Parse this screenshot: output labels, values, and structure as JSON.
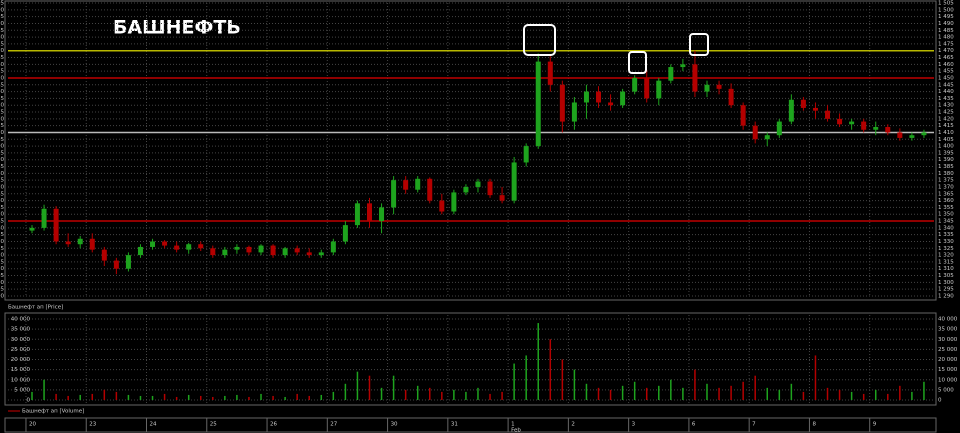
{
  "chart_data": {
    "type": "candlestick",
    "title": "БАШНЕФТЬ",
    "price_label": "Башнефт ап [Price]",
    "volume_label": "Башнефт ап [Volume]",
    "categories": [
      "20",
      null,
      null,
      null,
      null,
      "23",
      null,
      null,
      null,
      null,
      "24",
      null,
      null,
      null,
      null,
      "25",
      null,
      null,
      null,
      null,
      "26",
      null,
      null,
      null,
      null,
      "27",
      null,
      null,
      null,
      null,
      "30",
      null,
      null,
      null,
      null,
      "31",
      null,
      null,
      null,
      null,
      "1",
      null,
      null,
      null,
      null,
      "2",
      null,
      null,
      null,
      null,
      "3",
      null,
      null,
      null,
      null,
      "6",
      null,
      null,
      null,
      null,
      "7",
      null,
      null,
      null,
      null,
      "8",
      null,
      null,
      null,
      null,
      "9",
      null,
      null,
      null,
      null
    ],
    "month_categories": [
      null,
      null,
      null,
      null,
      null,
      null,
      null,
      null,
      null,
      null,
      null,
      null,
      null,
      null,
      null,
      null,
      null,
      null,
      null,
      null,
      null,
      null,
      null,
      null,
      null,
      null,
      null,
      null,
      null,
      null,
      null,
      null,
      null,
      null,
      null,
      null,
      null,
      null,
      null,
      null,
      "Feb",
      null,
      null,
      null,
      null,
      null,
      null,
      null,
      null,
      null,
      null,
      null,
      null,
      null,
      null,
      null,
      null,
      null,
      null,
      null,
      null,
      null,
      null,
      null,
      null,
      null,
      null,
      null,
      null,
      null,
      null,
      null,
      null,
      null,
      null
    ],
    "open": [
      1338,
      1340,
      1354,
      1330,
      1328,
      1332,
      1324,
      1316,
      1310,
      1320,
      1326,
      1330,
      1327,
      1324,
      1328,
      1325,
      1320,
      1324,
      1326,
      1322,
      1327,
      1320,
      1325,
      1322,
      1320,
      1322,
      1330,
      1342,
      1358,
      1345,
      1355,
      1375,
      1368,
      1376,
      1360,
      1352,
      1366,
      1370,
      1374,
      1364,
      1360,
      1388,
      1400,
      1462,
      1445,
      1418,
      1432,
      1440,
      1432,
      1430,
      1440,
      1450,
      1435,
      1448,
      1458,
      1460,
      1440,
      1445,
      1442,
      1430,
      1415,
      1405,
      1408,
      1418,
      1434,
      1428,
      1426,
      1420,
      1416,
      1418,
      1412,
      1414,
      1410,
      1406,
      1408
    ],
    "high": [
      1342,
      1357,
      1356,
      1336,
      1334,
      1336,
      1326,
      1318,
      1322,
      1328,
      1332,
      1331,
      1330,
      1329,
      1330,
      1327,
      1326,
      1328,
      1327,
      1328,
      1328,
      1326,
      1327,
      1325,
      1324,
      1332,
      1345,
      1360,
      1362,
      1358,
      1378,
      1378,
      1378,
      1377,
      1365,
      1368,
      1372,
      1376,
      1376,
      1370,
      1392,
      1402,
      1468,
      1466,
      1448,
      1436,
      1445,
      1444,
      1438,
      1442,
      1452,
      1456,
      1450,
      1460,
      1464,
      1470,
      1448,
      1448,
      1446,
      1432,
      1418,
      1410,
      1420,
      1438,
      1436,
      1432,
      1430,
      1424,
      1420,
      1420,
      1418,
      1416,
      1413,
      1410,
      1412
    ],
    "low": [
      1336,
      1338,
      1328,
      1326,
      1325,
      1322,
      1312,
      1306,
      1308,
      1318,
      1324,
      1325,
      1322,
      1321,
      1323,
      1318,
      1318,
      1321,
      1320,
      1320,
      1318,
      1318,
      1320,
      1318,
      1318,
      1320,
      1328,
      1340,
      1340,
      1336,
      1350,
      1365,
      1366,
      1358,
      1350,
      1350,
      1364,
      1366,
      1362,
      1358,
      1358,
      1385,
      1398,
      1440,
      1410,
      1412,
      1420,
      1428,
      1426,
      1428,
      1438,
      1432,
      1430,
      1446,
      1455,
      1436,
      1436,
      1438,
      1428,
      1412,
      1402,
      1400,
      1406,
      1416,
      1426,
      1420,
      1418,
      1414,
      1412,
      1410,
      1408,
      1408,
      1404,
      1404,
      1406
    ],
    "close": [
      1340,
      1354,
      1330,
      1328,
      1332,
      1324,
      1316,
      1310,
      1320,
      1326,
      1330,
      1327,
      1324,
      1328,
      1325,
      1320,
      1324,
      1326,
      1322,
      1327,
      1320,
      1325,
      1322,
      1320,
      1322,
      1330,
      1342,
      1358,
      1345,
      1355,
      1375,
      1368,
      1376,
      1360,
      1352,
      1366,
      1370,
      1374,
      1364,
      1360,
      1388,
      1400,
      1462,
      1445,
      1418,
      1432,
      1440,
      1432,
      1430,
      1440,
      1450,
      1435,
      1448,
      1458,
      1460,
      1440,
      1445,
      1442,
      1430,
      1415,
      1405,
      1408,
      1418,
      1434,
      1428,
      1426,
      1420,
      1416,
      1418,
      1412,
      1414,
      1410,
      1406,
      1408,
      1410
    ],
    "volume": [
      4000,
      10000,
      3000,
      2000,
      2500,
      3000,
      5000,
      4000,
      2500,
      2000,
      2000,
      3000,
      1500,
      2500,
      2000,
      1500,
      2000,
      2500,
      1500,
      3000,
      2000,
      1500,
      3000,
      2000,
      2500,
      4000,
      8000,
      14000,
      12000,
      6000,
      12000,
      5000,
      7000,
      6000,
      4000,
      5000,
      4000,
      6000,
      3000,
      4000,
      18000,
      22000,
      38000,
      30000,
      20000,
      15000,
      8000,
      6000,
      5000,
      7000,
      9000,
      6000,
      7000,
      10000,
      6000,
      15000,
      8000,
      6000,
      7000,
      9000,
      12000,
      6000,
      5000,
      8000,
      4000,
      22000,
      6000,
      5000,
      4000,
      3000,
      5000,
      3000,
      7000,
      4000,
      9000
    ],
    "up_color": "#1ea41e",
    "down_color": "#b40000",
    "hlines": [
      {
        "value": 1470,
        "color": "#b8b800"
      },
      {
        "value": 1450,
        "color": "#c00000"
      },
      {
        "value": 1410,
        "color": "#bbbbbb"
      },
      {
        "value": 1345,
        "color": "#c00000"
      }
    ],
    "ylim": [
      1290,
      1505
    ],
    "yticks": [
      {
        "value": 1290,
        "label": "1 290"
      },
      {
        "value": 1295,
        "label": "1 295"
      },
      {
        "value": 1300,
        "label": "1 300"
      },
      {
        "value": 1305,
        "label": "1 305"
      },
      {
        "value": 1310,
        "label": "1 310"
      },
      {
        "value": 1315,
        "label": "1 315"
      },
      {
        "value": 1320,
        "label": "1 320"
      },
      {
        "value": 1325,
        "label": "1 325"
      },
      {
        "value": 1330,
        "label": "1 330"
      },
      {
        "value": 1335,
        "label": "1 335"
      },
      {
        "value": 1340,
        "label": "1 340"
      },
      {
        "value": 1345,
        "label": "1 345"
      },
      {
        "value": 1350,
        "label": "1 350"
      },
      {
        "value": 1355,
        "label": "1 355"
      },
      {
        "value": 1360,
        "label": "1 360"
      },
      {
        "value": 1365,
        "label": "1 365"
      },
      {
        "value": 1370,
        "label": "1 370"
      },
      {
        "value": 1375,
        "label": "1 375"
      },
      {
        "value": 1380,
        "label": "1 380"
      },
      {
        "value": 1385,
        "label": "1 385"
      },
      {
        "value": 1390,
        "label": "1 390"
      },
      {
        "value": 1395,
        "label": "1 395"
      },
      {
        "value": 1400,
        "label": "1 400"
      },
      {
        "value": 1405,
        "label": "1 405"
      },
      {
        "value": 1410,
        "label": "1 410"
      },
      {
        "value": 1415,
        "label": "1 415"
      },
      {
        "value": 1420,
        "label": "1 420"
      },
      {
        "value": 1425,
        "label": "1 425"
      },
      {
        "value": 1430,
        "label": "1 430"
      },
      {
        "value": 1435,
        "label": "1 435"
      },
      {
        "value": 1440,
        "label": "1 440"
      },
      {
        "value": 1445,
        "label": "1 445"
      },
      {
        "value": 1450,
        "label": "1 450"
      },
      {
        "value": 1455,
        "label": "1 455"
      },
      {
        "value": 1460,
        "label": "1 460"
      },
      {
        "value": 1465,
        "label": "1 465"
      },
      {
        "value": 1470,
        "label": "1 470"
      },
      {
        "value": 1475,
        "label": "1 475"
      },
      {
        "value": 1480,
        "label": "1 480"
      },
      {
        "value": 1485,
        "label": "1 485"
      },
      {
        "value": 1490,
        "label": "1 490"
      },
      {
        "value": 1495,
        "label": "1 495"
      },
      {
        "value": 1500,
        "label": "1 500"
      },
      {
        "value": 1505,
        "label": "1 505"
      }
    ],
    "vlim": [
      0,
      40000
    ],
    "vticks": [
      0,
      {
        "value": 5000,
        "label": "5 000"
      },
      {
        "value": 10000,
        "label": "10 000"
      },
      {
        "value": 15000,
        "label": "15 000"
      },
      {
        "value": 20000,
        "label": "20 000"
      },
      {
        "value": 25000,
        "label": "25 000"
      },
      {
        "value": 30000,
        "label": "30 000"
      },
      {
        "value": 35000,
        "label": "35 000"
      },
      {
        "value": 40000,
        "label": "40 000"
      }
    ],
    "grid": true
  }
}
